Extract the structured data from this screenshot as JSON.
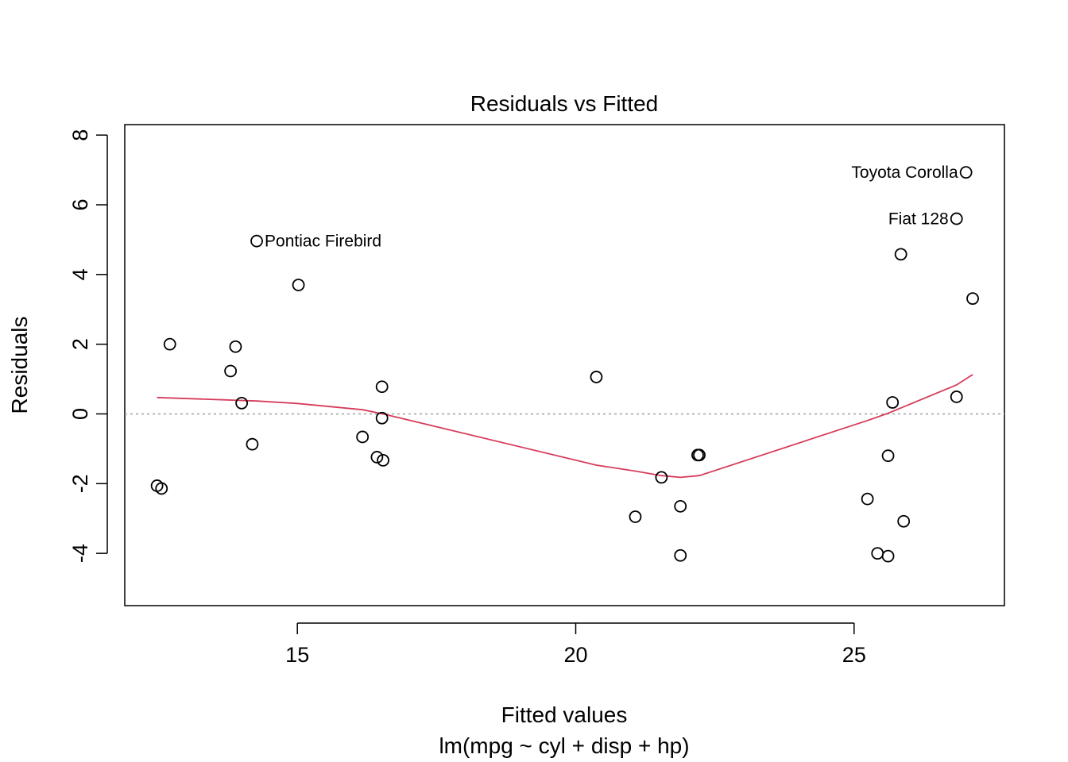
{
  "chart_data": {
    "type": "scatter",
    "title": "Residuals vs Fitted",
    "xlabel": "Fitted values",
    "subtitle": "lm(mpg ~ cyl + disp + hp)",
    "ylabel": "Residuals",
    "xlim": [
      11.9,
      27.7
    ],
    "ylim": [
      -5.5,
      8.3
    ],
    "x_ticks": [
      15,
      20,
      25
    ],
    "x_tick_labels": [
      "15",
      "20",
      "25"
    ],
    "y_ticks": [
      -4,
      -2,
      0,
      2,
      4,
      6,
      8
    ],
    "y_tick_labels": [
      "-4",
      "-2",
      "0",
      "2",
      "4",
      "6",
      "8"
    ],
    "grid": false,
    "reference_line": {
      "y": 0,
      "style": "dotted",
      "color": "#a0a0a0"
    },
    "colors": {
      "points": "#000000",
      "smooth": "#d63c5c",
      "axis": "#000000"
    },
    "points": [
      {
        "x": 12.48,
        "y": -2.06
      },
      {
        "x": 12.56,
        "y": -2.14
      },
      {
        "x": 12.71,
        "y": 2.0
      },
      {
        "x": 13.8,
        "y": 1.23
      },
      {
        "x": 13.89,
        "y": 1.93
      },
      {
        "x": 14.0,
        "y": 0.31
      },
      {
        "x": 14.19,
        "y": -0.87
      },
      {
        "x": 14.27,
        "y": 4.96,
        "label": "Pontiac Firebird",
        "label_side": "right"
      },
      {
        "x": 15.02,
        "y": 3.7
      },
      {
        "x": 16.17,
        "y": -0.66
      },
      {
        "x": 16.43,
        "y": -1.24
      },
      {
        "x": 16.52,
        "y": 0.78
      },
      {
        "x": 16.52,
        "y": -0.12
      },
      {
        "x": 16.54,
        "y": -1.33
      },
      {
        "x": 20.37,
        "y": 1.06
      },
      {
        "x": 21.07,
        "y": -2.95
      },
      {
        "x": 21.54,
        "y": -1.82
      },
      {
        "x": 21.88,
        "y": -2.65
      },
      {
        "x": 21.88,
        "y": -4.06
      },
      {
        "x": 22.19,
        "y": -1.18
      },
      {
        "x": 22.22,
        "y": -1.18
      },
      {
        "x": 25.24,
        "y": -2.44
      },
      {
        "x": 25.42,
        "y": -4.0
      },
      {
        "x": 25.61,
        "y": -1.2
      },
      {
        "x": 25.61,
        "y": -4.08
      },
      {
        "x": 25.69,
        "y": 0.33
      },
      {
        "x": 25.84,
        "y": 4.58
      },
      {
        "x": 25.89,
        "y": -3.08
      },
      {
        "x": 26.84,
        "y": 5.6,
        "label": "Fiat 128",
        "label_side": "left"
      },
      {
        "x": 26.84,
        "y": 0.49
      },
      {
        "x": 27.01,
        "y": 6.93,
        "label": "Toyota Corolla",
        "label_side": "left"
      },
      {
        "x": 27.13,
        "y": 3.31
      }
    ],
    "smooth_line": {
      "x": [
        12.48,
        14.27,
        15.0,
        16.17,
        16.54,
        20.37,
        21.07,
        21.54,
        21.88,
        22.22,
        25.24,
        25.61,
        26.84,
        27.13
      ],
      "y": [
        0.47,
        0.37,
        0.3,
        0.12,
        0.0,
        -1.47,
        -1.64,
        -1.77,
        -1.82,
        -1.77,
        -0.19,
        0.02,
        0.83,
        1.13
      ]
    }
  }
}
